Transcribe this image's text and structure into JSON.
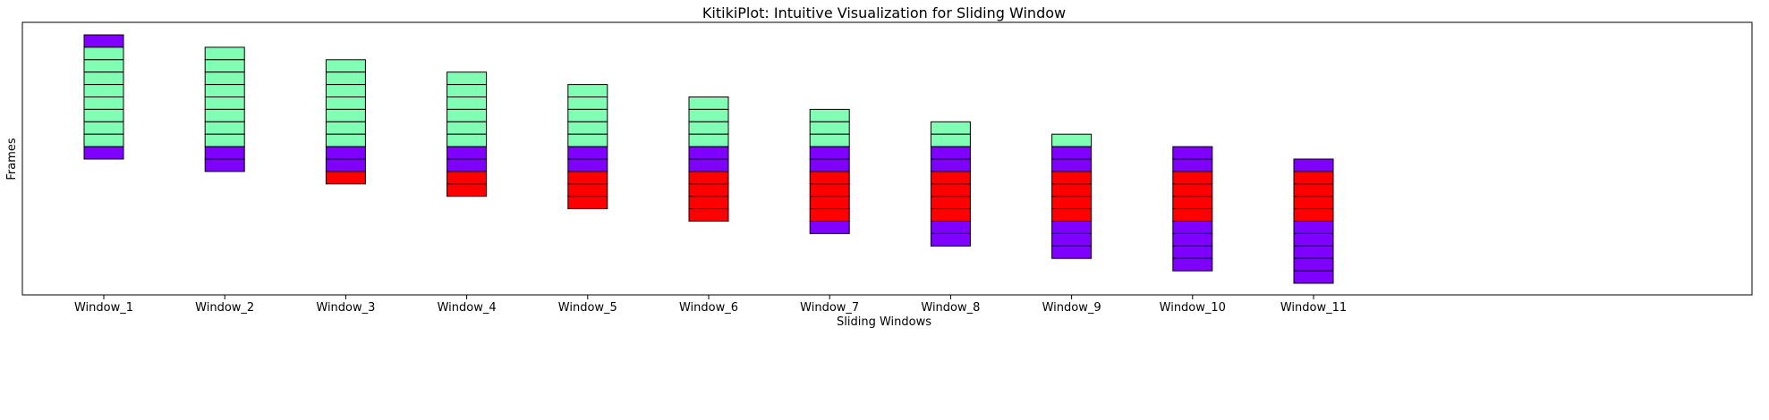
{
  "chart_data": {
    "type": "bar",
    "title": "KitikiPlot: Intuitive Visualization for Sliding Window",
    "xlabel": "Sliding Windows",
    "ylabel": "Frames",
    "grid": false,
    "legend": "none",
    "categories": [
      "Window_1",
      "Window_2",
      "Window_3",
      "Window_4",
      "Window_5",
      "Window_6",
      "Window_7",
      "Window_8",
      "Window_9",
      "Window_10",
      "Window_11"
    ],
    "colors": {
      "purple": "#8000ff",
      "green": "#80ffb4",
      "red": "#ff0000"
    },
    "windows": [
      [
        "purple",
        "green",
        "green",
        "green",
        "green",
        "green",
        "green",
        "green",
        "green",
        "purple"
      ],
      [
        "green",
        "green",
        "green",
        "green",
        "green",
        "green",
        "green",
        "green",
        "purple",
        "purple"
      ],
      [
        "green",
        "green",
        "green",
        "green",
        "green",
        "green",
        "green",
        "purple",
        "purple",
        "red"
      ],
      [
        "green",
        "green",
        "green",
        "green",
        "green",
        "green",
        "purple",
        "purple",
        "red",
        "red"
      ],
      [
        "green",
        "green",
        "green",
        "green",
        "green",
        "purple",
        "purple",
        "red",
        "red",
        "red"
      ],
      [
        "green",
        "green",
        "green",
        "green",
        "purple",
        "purple",
        "red",
        "red",
        "red",
        "red"
      ],
      [
        "green",
        "green",
        "green",
        "purple",
        "purple",
        "red",
        "red",
        "red",
        "red",
        "purple"
      ],
      [
        "green",
        "green",
        "purple",
        "purple",
        "red",
        "red",
        "red",
        "red",
        "purple",
        "purple"
      ],
      [
        "green",
        "purple",
        "purple",
        "red",
        "red",
        "red",
        "red",
        "purple",
        "purple",
        "purple"
      ],
      [
        "purple",
        "purple",
        "red",
        "red",
        "red",
        "red",
        "purple",
        "purple",
        "purple",
        "purple"
      ],
      [
        "purple",
        "red",
        "red",
        "red",
        "red",
        "purple",
        "purple",
        "purple",
        "purple",
        "purple"
      ]
    ]
  }
}
